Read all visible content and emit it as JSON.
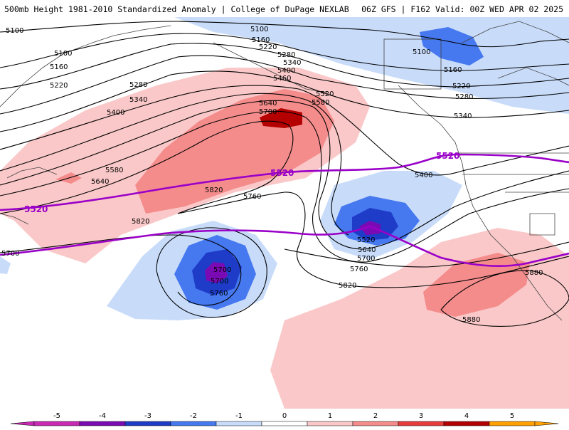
{
  "header": {
    "left": "500mb Height 1981-2010 Standardized Anomaly | College of DuPage NEXLAB",
    "right": "06Z GFS | F162 Valid: 00Z WED APR 02 2025"
  },
  "contour_labels": [
    "5100",
    "5160",
    "5220",
    "5280",
    "5340",
    "5400",
    "5460",
    "5520",
    "5580",
    "5640",
    "5700",
    "5760",
    "5820",
    "5880"
  ],
  "highlight_contour": "5520",
  "colorbar": {
    "ticks": [
      "-5",
      "-4",
      "-3",
      "-2",
      "-1",
      "0",
      "1",
      "2",
      "3",
      "4",
      "5"
    ],
    "colors": {
      "n5": "#c82ab4",
      "n4": "#7a0ab4",
      "n3": "#1e3cc8",
      "n2": "#4678f0",
      "n1": "#c8dcfa",
      "z": "#ffffff",
      "p1": "#fac8c8",
      "p2": "#f58c8c",
      "p3": "#e63c3c",
      "p4": "#b40000",
      "p5": "#ffa000"
    }
  },
  "colors": {
    "contour": "#000000",
    "highlight": "#9a00c8",
    "coast": "#444444"
  }
}
